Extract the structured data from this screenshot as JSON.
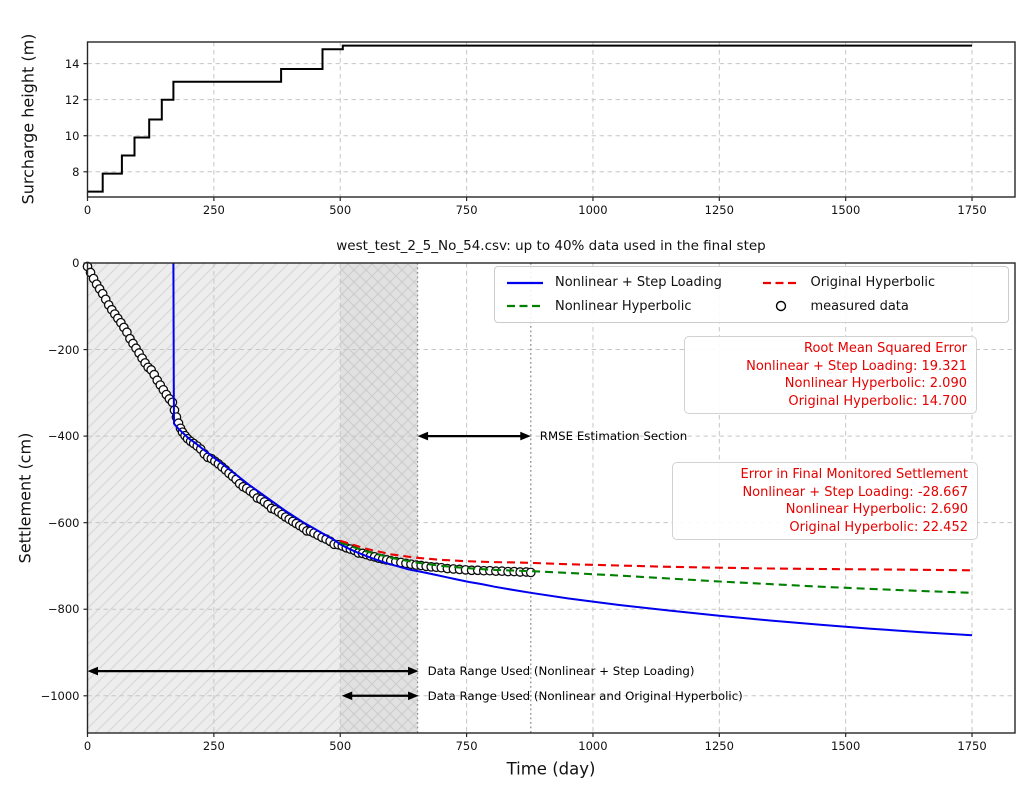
{
  "legend": {
    "items": [
      {
        "label": "Nonlinear + Step Loading",
        "color": "#0000ee",
        "marker": "line-solid"
      },
      {
        "label": "Nonlinear Hyperbolic",
        "color": "#008000",
        "marker": "line-dashed"
      },
      {
        "label": "Original Hyperbolic",
        "color": "#ee0000",
        "marker": "line-dashed"
      },
      {
        "label": "measured data",
        "color": "#000000",
        "marker": "circle"
      }
    ]
  },
  "rmse_box": {
    "color": "#e60000",
    "lines": [
      "Root Mean Squared Error",
      "Nonlinear + Step Loading: 19.321",
      "Nonlinear Hyperbolic: 2.090",
      "Original Hyperbolic: 14.700"
    ]
  },
  "error_box": {
    "color": "#e60000",
    "lines": [
      "Error in Final Monitored Settlement",
      "Nonlinear + Step Loading: -28.667",
      "Nonlinear Hyperbolic: 2.690",
      "Original Hyperbolic: 22.452"
    ]
  },
  "chart_data": [
    {
      "type": "line",
      "title": "",
      "xlabel": "",
      "ylabel": "Surcharge height (m)",
      "xlim": [
        0,
        1835
      ],
      "ylim": [
        6.6,
        15.2
      ],
      "xticks": [
        0,
        250,
        500,
        750,
        1000,
        1250,
        1500,
        1750
      ],
      "yticks": [
        8,
        10,
        12,
        14
      ],
      "grid": true,
      "series": [
        {
          "name": "surcharge-height",
          "type": "line",
          "style": "solid",
          "color": "#000000",
          "width": 2,
          "points": [
            [
              0,
              6.9
            ],
            [
              30,
              6.9
            ],
            [
              30,
              7.9
            ],
            [
              68,
              7.9
            ],
            [
              68,
              8.9
            ],
            [
              93,
              8.9
            ],
            [
              93,
              9.9
            ],
            [
              122,
              9.9
            ],
            [
              122,
              10.9
            ],
            [
              147,
              10.9
            ],
            [
              147,
              12.0
            ],
            [
              170,
              12.0
            ],
            [
              170,
              13.0
            ],
            [
              383,
              13.0
            ],
            [
              383,
              13.7
            ],
            [
              465,
              13.7
            ],
            [
              465,
              14.8
            ],
            [
              505,
              14.8
            ],
            [
              505,
              15.0
            ],
            [
              1750,
              15.0
            ]
          ]
        }
      ]
    },
    {
      "type": "line+scatter",
      "title": "west_test_2_5_No_54.csv: up to 40% data used in the final step",
      "xlabel": "Time (day)",
      "ylabel": "Settlement (cm)",
      "xlim": [
        0,
        1835
      ],
      "ylim": [
        -1086,
        0
      ],
      "xticks": [
        0,
        250,
        500,
        750,
        1000,
        1250,
        1500,
        1750
      ],
      "yticks": [
        0,
        -200,
        -400,
        -600,
        -800,
        -1000
      ],
      "grid": true,
      "regions": [
        {
          "x0": 0,
          "x1": 653,
          "hatch": "slash",
          "note": "Data Range Used (Nonlinear + Step Loading)"
        },
        {
          "x0": 500,
          "x1": 653,
          "hatch": "cross",
          "note": "Data Range Used (Nonlinear and Original Hyperbolic)"
        }
      ],
      "vlines": [
        {
          "x": 653
        },
        {
          "x": 877
        }
      ],
      "arrows": [
        {
          "x0": 653,
          "x1": 877,
          "y": -400,
          "label": "RMSE Estimation Section"
        },
        {
          "x0": 0,
          "x1": 655,
          "y": -943,
          "label": "Data Range Used (Nonlinear + Step Loading)"
        },
        {
          "x0": 503,
          "x1": 655,
          "y": -1000,
          "label": "Data Range Used (Nonlinear and Original Hyperbolic)"
        }
      ],
      "series": [
        {
          "name": "measured data",
          "type": "scatter",
          "color": "#000000",
          "points": [
            [
              0,
              -8
            ],
            [
              6,
              -22
            ],
            [
              12,
              -36
            ],
            [
              18,
              -49
            ],
            [
              24,
              -60
            ],
            [
              30,
              -71
            ],
            [
              36,
              -84
            ],
            [
              42,
              -97
            ],
            [
              48,
              -108
            ],
            [
              54,
              -118
            ],
            [
              60,
              -128
            ],
            [
              66,
              -138
            ],
            [
              72,
              -149
            ],
            [
              78,
              -160
            ],
            [
              84,
              -175
            ],
            [
              90,
              -186
            ],
            [
              96,
              -197
            ],
            [
              102,
              -208
            ],
            [
              108,
              -220
            ],
            [
              114,
              -231
            ],
            [
              120,
              -241
            ],
            [
              126,
              -247
            ],
            [
              132,
              -258
            ],
            [
              138,
              -271
            ],
            [
              144,
              -282
            ],
            [
              150,
              -293
            ],
            [
              156,
              -304
            ],
            [
              162,
              -314
            ],
            [
              168,
              -322
            ],
            [
              172,
              -340
            ],
            [
              176,
              -356
            ],
            [
              180,
              -370
            ],
            [
              184,
              -382
            ],
            [
              188,
              -391
            ],
            [
              193,
              -399
            ],
            [
              198,
              -406
            ],
            [
              204,
              -412
            ],
            [
              210,
              -417
            ],
            [
              217,
              -423
            ],
            [
              224,
              -430
            ],
            [
              231,
              -441
            ],
            [
              238,
              -449
            ],
            [
              245,
              -452
            ],
            [
              252,
              -458
            ],
            [
              259,
              -464
            ],
            [
              266,
              -471
            ],
            [
              273,
              -478
            ],
            [
              280,
              -486
            ],
            [
              287,
              -493
            ],
            [
              294,
              -500
            ],
            [
              301,
              -510
            ],
            [
              308,
              -517
            ],
            [
              315,
              -521
            ],
            [
              322,
              -527
            ],
            [
              329,
              -533
            ],
            [
              336,
              -543
            ],
            [
              343,
              -546
            ],
            [
              350,
              -552
            ],
            [
              357,
              -558
            ],
            [
              364,
              -567
            ],
            [
              371,
              -570
            ],
            [
              378,
              -575
            ],
            [
              385,
              -581
            ],
            [
              392,
              -587
            ],
            [
              399,
              -592
            ],
            [
              406,
              -597
            ],
            [
              413,
              -602
            ],
            [
              420,
              -607
            ],
            [
              427,
              -612
            ],
            [
              434,
              -619
            ],
            [
              441,
              -620
            ],
            [
              448,
              -624
            ],
            [
              456,
              -629
            ],
            [
              464,
              -634
            ],
            [
              472,
              -638
            ],
            [
              480,
              -643
            ],
            [
              488,
              -650
            ],
            [
              496,
              -651
            ],
            [
              504,
              -654
            ],
            [
              512,
              -658
            ],
            [
              520,
              -661
            ],
            [
              528,
              -664
            ],
            [
              536,
              -670
            ],
            [
              544,
              -671
            ],
            [
              552,
              -674
            ],
            [
              560,
              -677
            ],
            [
              568,
              -679
            ],
            [
              576,
              -682
            ],
            [
              584,
              -684
            ],
            [
              592,
              -686
            ],
            [
              600,
              -688
            ],
            [
              610,
              -690
            ],
            [
              620,
              -692
            ],
            [
              630,
              -694
            ],
            [
              640,
              -696
            ],
            [
              650,
              -698
            ],
            [
              660,
              -699
            ],
            [
              670,
              -701
            ],
            [
              680,
              -702
            ],
            [
              690,
              -703
            ],
            [
              700,
              -704
            ],
            [
              712,
              -706
            ],
            [
              724,
              -707
            ],
            [
              736,
              -708
            ],
            [
              748,
              -709
            ],
            [
              760,
              -710
            ],
            [
              772,
              -710
            ],
            [
              784,
              -711
            ],
            [
              796,
              -711
            ],
            [
              808,
              -712
            ],
            [
              820,
              -712
            ],
            [
              832,
              -713
            ],
            [
              844,
              -713
            ],
            [
              856,
              -714
            ],
            [
              868,
              -714
            ],
            [
              877,
              -715
            ]
          ]
        },
        {
          "name": "Nonlinear + Step Loading",
          "type": "line",
          "style": "solid",
          "color": "#0000ee",
          "width": 2,
          "points": [
            [
              170,
              0
            ],
            [
              170.4,
              -150
            ],
            [
              170.8,
              -300
            ],
            [
              171.2,
              -371
            ],
            [
              180,
              -383
            ],
            [
              190,
              -394
            ],
            [
              200,
              -405
            ],
            [
              212,
              -415
            ],
            [
              224,
              -426
            ],
            [
              236,
              -437
            ],
            [
              248,
              -448
            ],
            [
              260,
              -458
            ],
            [
              272,
              -469
            ],
            [
              284,
              -480
            ],
            [
              296,
              -491
            ],
            [
              308,
              -502
            ],
            [
              320,
              -513
            ],
            [
              332,
              -523
            ],
            [
              344,
              -533
            ],
            [
              356,
              -543
            ],
            [
              368,
              -553
            ],
            [
              380,
              -563
            ],
            [
              392,
              -573
            ],
            [
              404,
              -582
            ],
            [
              416,
              -591
            ],
            [
              428,
              -600
            ],
            [
              440,
              -608
            ],
            [
              452,
              -616
            ],
            [
              464,
              -624
            ],
            [
              476,
              -632
            ],
            [
              488,
              -640
            ],
            [
              500,
              -650
            ],
            [
              515,
              -659
            ],
            [
              530,
              -667
            ],
            [
              545,
              -674
            ],
            [
              560,
              -681
            ],
            [
              575,
              -687
            ],
            [
              590,
              -693
            ],
            [
              605,
              -698
            ],
            [
              620,
              -703
            ],
            [
              635,
              -708
            ],
            [
              653,
              -712
            ],
            [
              670,
              -716
            ],
            [
              690,
              -721
            ],
            [
              710,
              -726
            ],
            [
              730,
              -731
            ],
            [
              755,
              -737
            ],
            [
              780,
              -742
            ],
            [
              805,
              -748
            ],
            [
              830,
              -753
            ],
            [
              855,
              -758
            ],
            [
              877,
              -762
            ],
            [
              950,
              -775
            ],
            [
              1050,
              -790
            ],
            [
              1150,
              -803
            ],
            [
              1250,
              -815
            ],
            [
              1350,
              -826
            ],
            [
              1450,
              -836
            ],
            [
              1550,
              -845
            ],
            [
              1650,
              -853
            ],
            [
              1750,
              -860
            ]
          ]
        },
        {
          "name": "Nonlinear Hyperbolic",
          "type": "line",
          "style": "dashed",
          "color": "#008000",
          "width": 2.1,
          "points": [
            [
              500,
              -646
            ],
            [
              550,
              -666
            ],
            [
              600,
              -681
            ],
            [
              650,
              -692
            ],
            [
              700,
              -700
            ],
            [
              750,
              -705
            ],
            [
              800,
              -709
            ],
            [
              850,
              -711
            ],
            [
              877,
              -712
            ],
            [
              950,
              -716
            ],
            [
              1050,
              -722
            ],
            [
              1150,
              -729
            ],
            [
              1250,
              -736
            ],
            [
              1350,
              -742
            ],
            [
              1450,
              -748
            ],
            [
              1550,
              -753
            ],
            [
              1650,
              -758
            ],
            [
              1750,
              -762
            ]
          ]
        },
        {
          "name": "Original Hyperbolic",
          "type": "line",
          "style": "dashed",
          "color": "#ee0000",
          "width": 2.1,
          "points": [
            [
              500,
              -642
            ],
            [
              550,
              -660
            ],
            [
              600,
              -673
            ],
            [
              650,
              -681
            ],
            [
              700,
              -686
            ],
            [
              750,
              -689
            ],
            [
              800,
              -691
            ],
            [
              850,
              -692
            ],
            [
              877,
              -693
            ],
            [
              950,
              -696
            ],
            [
              1050,
              -699
            ],
            [
              1150,
              -702
            ],
            [
              1250,
              -704
            ],
            [
              1350,
              -706
            ],
            [
              1450,
              -707
            ],
            [
              1550,
              -708
            ],
            [
              1650,
              -709
            ],
            [
              1750,
              -710
            ]
          ]
        }
      ]
    }
  ]
}
